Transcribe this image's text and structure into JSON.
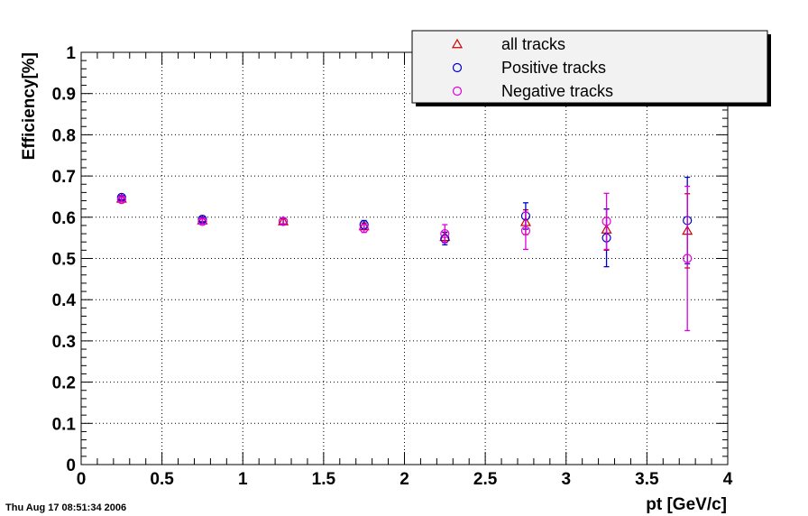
{
  "chart_data": {
    "type": "scatter",
    "title": "",
    "xlabel": "pt [GeV/c]",
    "ylabel": "Efficiency[%]",
    "xlim": [
      0,
      4
    ],
    "ylim": [
      0,
      1
    ],
    "grid": true,
    "legend_position": "top-right",
    "x_ticks": [
      "0",
      "0.5",
      "1",
      "1.5",
      "2",
      "2.5",
      "3",
      "3.5",
      "4"
    ],
    "y_ticks": [
      "0",
      "0.1",
      "0.2",
      "0.3",
      "0.4",
      "0.5",
      "0.6",
      "0.7",
      "0.8",
      "0.9",
      "1"
    ],
    "series": [
      {
        "name": "all tracks",
        "marker": "triangle",
        "color": "#cc0000",
        "x": [
          0.25,
          0.75,
          1.25,
          1.75,
          2.25,
          2.75,
          3.25,
          3.75
        ],
        "y": [
          0.645,
          0.592,
          0.59,
          0.578,
          0.552,
          0.588,
          0.57,
          0.567
        ],
        "err": [
          0.004,
          0.005,
          0.006,
          0.008,
          0.012,
          0.03,
          0.05,
          0.09
        ]
      },
      {
        "name": "Positive tracks",
        "marker": "circle",
        "color": "#0000cc",
        "x": [
          0.25,
          0.75,
          1.25,
          1.75,
          2.25,
          2.75,
          3.25,
          3.75
        ],
        "y": [
          0.648,
          0.595,
          0.59,
          0.582,
          0.548,
          0.603,
          0.55,
          0.592
        ],
        "err": [
          0.005,
          0.006,
          0.008,
          0.01,
          0.015,
          0.032,
          0.07,
          0.105
        ]
      },
      {
        "name": "Negative tracks",
        "marker": "circle",
        "color": "#dd00dd",
        "x": [
          0.25,
          0.75,
          1.25,
          1.75,
          2.25,
          2.75,
          3.25,
          3.75
        ],
        "y": [
          0.643,
          0.59,
          0.59,
          0.573,
          0.56,
          0.567,
          0.59,
          0.5
        ],
        "err": [
          0.005,
          0.006,
          0.008,
          0.01,
          0.022,
          0.045,
          0.068,
          0.175
        ]
      }
    ]
  },
  "footer": {
    "timestamp": "Thu Aug 17 08:51:34 2006"
  },
  "colors": {
    "frame": "#000000",
    "legend_shadow": "#000000",
    "grid": "#000000"
  }
}
